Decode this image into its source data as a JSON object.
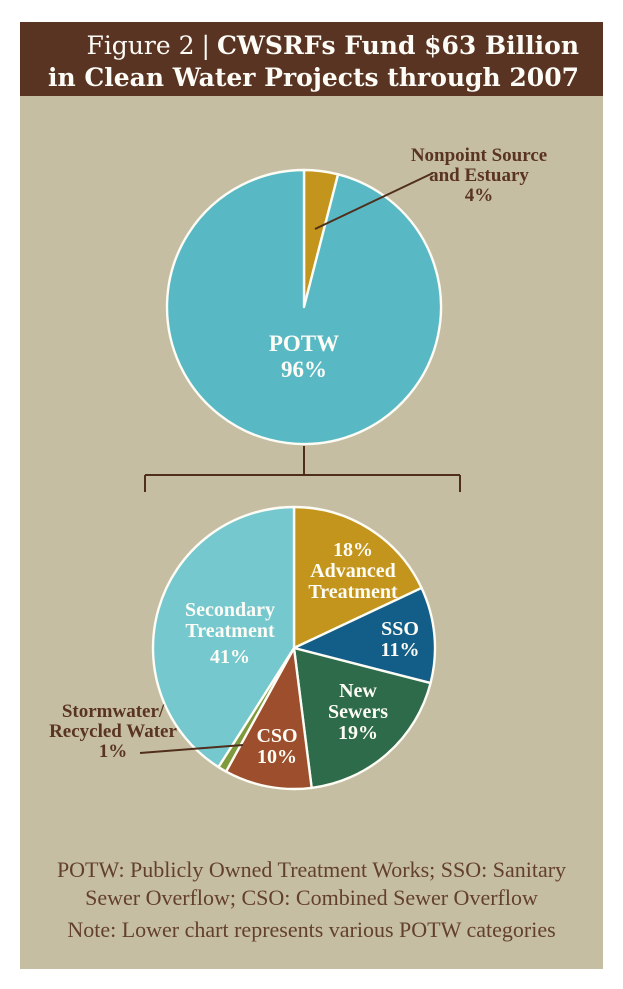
{
  "header": {
    "figure_label": "Figure 2",
    "divider": "|",
    "title_line1": "CWSRFs Fund $63 Billion",
    "title_line2": "in Clean Water Projects through 2007",
    "bar_color": "#5a3423",
    "text_color": "#fdfcf6"
  },
  "panel": {
    "background": "#c6bea3"
  },
  "colors": {
    "slice_label": "#fdfcf5",
    "callout_text": "#5a3423",
    "leader_line": "#4f2f1c",
    "pie_border": "#fdfcf5",
    "footnote_text": "#63402e"
  },
  "chart_data": [
    {
      "type": "pie",
      "title": "CWSRF funding by recipient (share of $63 billion)",
      "units": "percent",
      "layout": "starts at 12 o'clock, clockwise; callout label upper right",
      "slices": [
        {
          "label": "Nonpoint Source and Estuary",
          "value": 4,
          "color": "#c4951c"
        },
        {
          "label": "POTW",
          "value": 96,
          "color": "#58b9c5"
        }
      ],
      "center_label_lines": [
        "POTW",
        "96%"
      ],
      "callout": {
        "lines": [
          "Nonpoint Source",
          "and Estuary",
          "4%"
        ]
      }
    },
    {
      "type": "pie",
      "title": "POTW categories",
      "units": "percent",
      "layout": "starts at 12 o'clock, clockwise; 1% slice labeled by left callout",
      "slices": [
        {
          "label": "Advanced Treatment",
          "value": 18,
          "color": "#c4951c",
          "label_lines": [
            "18%",
            "Advanced",
            "Treatment"
          ]
        },
        {
          "label": "SSO",
          "value": 11,
          "color": "#135e88",
          "label_lines": [
            "SSO",
            "11%"
          ]
        },
        {
          "label": "New Sewers",
          "value": 19,
          "color": "#2d6b4a",
          "label_lines": [
            "New",
            "Sewers",
            "19%"
          ]
        },
        {
          "label": "CSO",
          "value": 10,
          "color": "#9d4f2d",
          "label_lines": [
            "CSO",
            "10%"
          ]
        },
        {
          "label": "Stormwater/Recycled Water",
          "value": 1,
          "color": "#7e9a3d",
          "callout_lines": [
            "Stormwater/",
            "Recycled Water",
            "1%"
          ]
        },
        {
          "label": "Secondary Treatment",
          "value": 41,
          "color": "#76c8cf",
          "label_lines": [
            "Secondary",
            "Treatment",
            "41%"
          ]
        }
      ]
    }
  ],
  "footnotes": {
    "abbreviations_line1": "POTW: Publicly Owned Treatment Works; SSO: Sanitary",
    "abbreviations_line2": "Sewer Overflow; CSO: Combined Sewer Overflow",
    "note": "Note: Lower chart represents various POTW categories"
  }
}
